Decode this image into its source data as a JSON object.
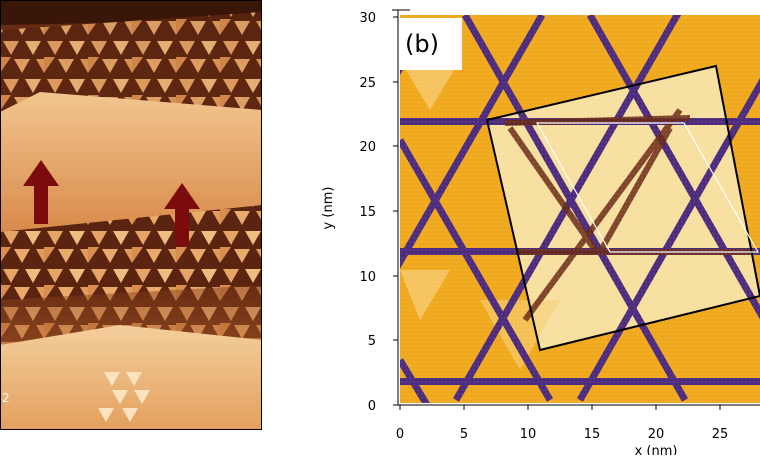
{
  "panel_b": {
    "label": "(b)",
    "x_axis_label": "x (nm)",
    "y_axis_label": "y (nm)",
    "x_ticks": [
      "0",
      "5",
      "10",
      "15",
      "20",
      "25"
    ],
    "y_ticks": [
      "0",
      "5",
      "10",
      "15",
      "20",
      "25",
      "30"
    ]
  },
  "panel_a": {
    "corner_mark": "2"
  },
  "colors": {
    "stm_dark": "#3a1608",
    "stm_mid": "#c8763a",
    "stm_light": "#f7d7a5",
    "arrow": "#7b0c0b",
    "map_orange": "#f0a81c",
    "map_light": "#f7df9f",
    "map_line": "#4d2b7d",
    "frame": "#000000"
  }
}
